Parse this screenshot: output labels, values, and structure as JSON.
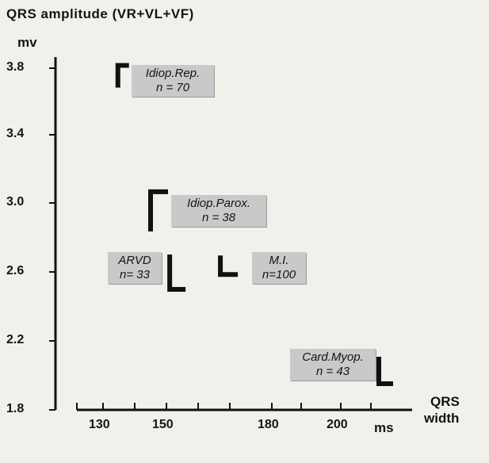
{
  "chart_data": {
    "type": "scatter",
    "title": "QRS amplitude (VR+VL+VF)",
    "ylabel": "mv",
    "xlabel_line1": "QRS",
    "xlabel_line2": "width",
    "xunit": "ms",
    "ylim": [
      1.8,
      3.9
    ],
    "yticks": [
      "1.8",
      "2.2",
      "2.6",
      "3.0",
      "3.4",
      "3.8"
    ],
    "xticks": [
      "130",
      "150",
      "180",
      "200"
    ],
    "groups": [
      {
        "name": "Idiop.Rep.",
        "n_label": "n = 70",
        "x": 135,
        "y": 3.75
      },
      {
        "name": "Idiop.Parox.",
        "n_label": "n = 38",
        "x": 146,
        "y": 2.95
      },
      {
        "name": "ARVD",
        "n_label": "n= 33",
        "x": 152,
        "y": 2.6
      },
      {
        "name": "M.I.",
        "n_label": "n=100",
        "x": 166,
        "y": 2.64
      },
      {
        "name": "Card.Myop.",
        "n_label": "n = 43",
        "x": 212,
        "y": 2.03
      }
    ]
  }
}
